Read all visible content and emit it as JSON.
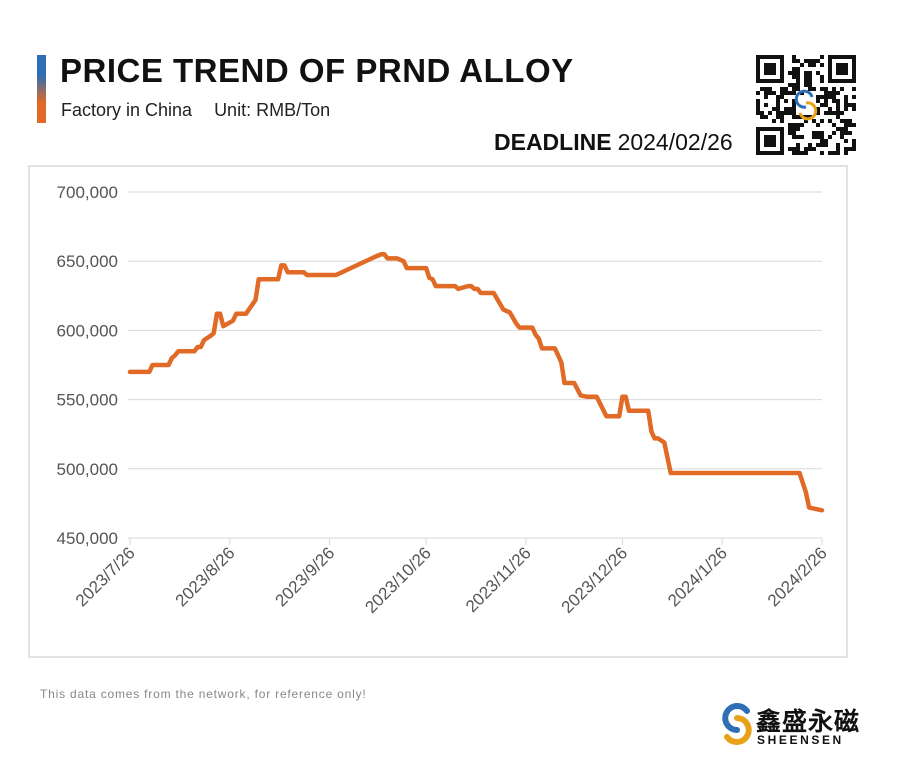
{
  "header": {
    "title": "PRICE TREND OF PRND ALLOY",
    "factory": "Factory in China",
    "unit": "Unit: RMB/Ton",
    "deadline_label": "DEADLINE",
    "deadline_date": "2024/02/26"
  },
  "footer": {
    "note": "This data comes from the network, for reference only!",
    "logo_cn": "鑫盛永磁",
    "logo_en": "SHEENSEN"
  },
  "colors": {
    "line": "#E06A26",
    "grid": "#D9D9D9",
    "tick_text": "#555555",
    "accent_blue": "#2F6DB5",
    "accent_orange": "#E06A26"
  },
  "chart_data": {
    "type": "line",
    "title": "PRICE TREND OF PRND ALLOY",
    "xlabel": "",
    "ylabel": "",
    "ylim": [
      450000,
      700000
    ],
    "yticks": [
      450000,
      500000,
      550000,
      600000,
      650000,
      700000
    ],
    "ytick_labels": [
      "450,000",
      "500,000",
      "550,000",
      "600,000",
      "650,000",
      "700,000"
    ],
    "xlim": [
      "2023-07-26",
      "2024-02-26"
    ],
    "xticks": [
      "2023-07-26",
      "2023-08-26",
      "2023-09-26",
      "2023-10-26",
      "2023-11-26",
      "2023-12-26",
      "2024-01-26",
      "2024-02-26"
    ],
    "xtick_labels": [
      "2023/7/26",
      "2023/8/26",
      "2023/9/26",
      "2023/10/26",
      "2023/11/26",
      "2023/12/26",
      "2024/1/26",
      "2024/2/26"
    ],
    "grid": true,
    "legend": "none",
    "series": [
      {
        "points": [
          [
            "2023-07-26",
            570000
          ],
          [
            "2023-08-01",
            570000
          ],
          [
            "2023-08-02",
            575000
          ],
          [
            "2023-08-07",
            575000
          ],
          [
            "2023-08-08",
            580000
          ],
          [
            "2023-08-09",
            582000
          ],
          [
            "2023-08-10",
            585000
          ],
          [
            "2023-08-15",
            585000
          ],
          [
            "2023-08-16",
            588000
          ],
          [
            "2023-08-17",
            588000
          ],
          [
            "2023-08-18",
            593000
          ],
          [
            "2023-08-20",
            596000
          ],
          [
            "2023-08-21",
            598000
          ],
          [
            "2023-08-22",
            612000
          ],
          [
            "2023-08-23",
            612000
          ],
          [
            "2023-08-24",
            603000
          ],
          [
            "2023-08-27",
            607000
          ],
          [
            "2023-08-28",
            612000
          ],
          [
            "2023-08-31",
            612000
          ],
          [
            "2023-09-03",
            622000
          ],
          [
            "2023-09-04",
            637000
          ],
          [
            "2023-09-10",
            637000
          ],
          [
            "2023-09-11",
            647000
          ],
          [
            "2023-09-12",
            647000
          ],
          [
            "2023-09-13",
            642000
          ],
          [
            "2023-09-18",
            642000
          ],
          [
            "2023-09-19",
            640000
          ],
          [
            "2023-09-28",
            640000
          ],
          [
            "2023-10-10",
            653000
          ],
          [
            "2023-10-12",
            655000
          ],
          [
            "2023-10-13",
            655000
          ],
          [
            "2023-10-14",
            652000
          ],
          [
            "2023-10-17",
            652000
          ],
          [
            "2023-10-19",
            650000
          ],
          [
            "2023-10-20",
            645000
          ],
          [
            "2023-10-26",
            645000
          ],
          [
            "2023-10-27",
            638000
          ],
          [
            "2023-10-28",
            637000
          ],
          [
            "2023-10-29",
            632000
          ],
          [
            "2023-11-04",
            632000
          ],
          [
            "2023-11-05",
            630000
          ],
          [
            "2023-11-08",
            632000
          ],
          [
            "2023-11-09",
            632000
          ],
          [
            "2023-11-10",
            630000
          ],
          [
            "2023-11-11",
            630000
          ],
          [
            "2023-11-12",
            627000
          ],
          [
            "2023-11-16",
            627000
          ],
          [
            "2023-11-19",
            615000
          ],
          [
            "2023-11-21",
            613000
          ],
          [
            "2023-11-23",
            605000
          ],
          [
            "2023-11-24",
            602000
          ],
          [
            "2023-11-28",
            602000
          ],
          [
            "2023-11-29",
            597000
          ],
          [
            "2023-11-30",
            594000
          ],
          [
            "2023-12-01",
            587000
          ],
          [
            "2023-12-05",
            587000
          ],
          [
            "2023-12-07",
            577000
          ],
          [
            "2023-12-08",
            562000
          ],
          [
            "2023-12-11",
            562000
          ],
          [
            "2023-12-13",
            553000
          ],
          [
            "2023-12-15",
            552000
          ],
          [
            "2023-12-18",
            552000
          ],
          [
            "2023-12-21",
            538000
          ],
          [
            "2023-12-25",
            538000
          ],
          [
            "2023-12-26",
            552000
          ],
          [
            "2023-12-27",
            552000
          ],
          [
            "2023-12-28",
            542000
          ],
          [
            "2024-01-03",
            542000
          ],
          [
            "2024-01-04",
            527000
          ],
          [
            "2024-01-05",
            522000
          ],
          [
            "2024-01-06",
            522000
          ],
          [
            "2024-01-08",
            519000
          ],
          [
            "2024-01-10",
            497000
          ],
          [
            "2024-02-19",
            497000
          ],
          [
            "2024-02-21",
            483000
          ],
          [
            "2024-02-22",
            472000
          ],
          [
            "2024-02-26",
            470000
          ]
        ]
      }
    ]
  }
}
